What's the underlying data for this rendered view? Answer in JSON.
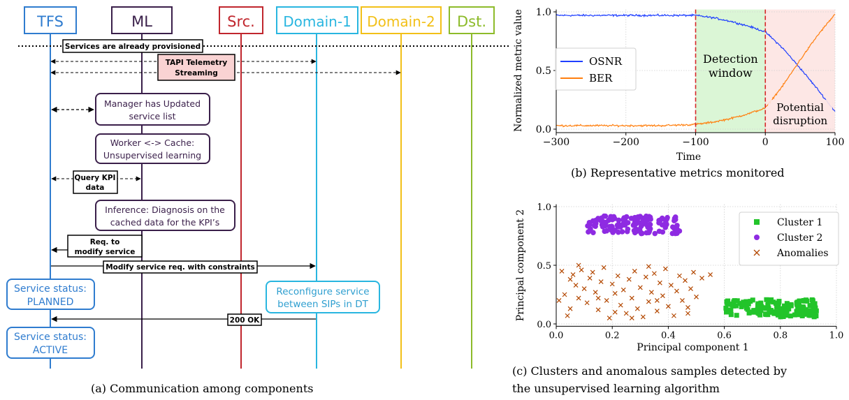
{
  "panel_a": {
    "caption": "(a) Communication among components",
    "lifelines": [
      {
        "label": "TFS",
        "color": "#2f7ccf"
      },
      {
        "label": "ML",
        "color": "#3a1f4a"
      },
      {
        "label": "Src.",
        "color": "#c0262d"
      },
      {
        "label": "Domain-1",
        "color": "#29b6e0"
      },
      {
        "label": "Domain-2",
        "color": "#f2c018"
      },
      {
        "label": "Dst.",
        "color": "#8dbb2a"
      }
    ],
    "messages": {
      "provisioned": "Services are already provisioned",
      "telemetry_line1": "TAPI Telemetry",
      "telemetry_line2": "Streaming",
      "query_line1": "Query KPI",
      "query_line2": "data",
      "req_line1": "Req. to",
      "req_line2": "modify service",
      "modify": "Modify service req. with constraints",
      "ok": "200 OK"
    },
    "notes": {
      "manager_line1": "Manager has Updated",
      "manager_line2": "service list",
      "worker_line1": "Worker <-> Cache:",
      "worker_line2": "Unsupervised learning",
      "inference_line1": "Inference: Diagnosis on the",
      "inference_line2": "cached data for the KPI’s",
      "planned_line1": "Service status:",
      "planned_line2": "PLANNED",
      "reconfig_line1": "Reconfigure service",
      "reconfig_line2": "between SIPs in DT",
      "active_line1": "Service status:",
      "active_line2": "ACTIVE"
    }
  },
  "chart_data": [
    {
      "type": "line",
      "caption": "(b) Representative metrics monitored",
      "xlabel": "Time",
      "ylabel": "Normalized metric value",
      "xlim": [
        -300,
        100
      ],
      "ylim": [
        0,
        1
      ],
      "xticks": [
        -300,
        -200,
        -100,
        0,
        100
      ],
      "yticks": [
        0.0,
        0.5,
        1.0
      ],
      "xtick_labels": [
        "−300",
        "−200",
        "−100",
        "0",
        "100"
      ],
      "ytick_labels": [
        "0.0",
        "0.5",
        "1.0"
      ],
      "grid": true,
      "legend_position": "center-left",
      "series": [
        {
          "name": "OSNR",
          "color": "#1f3fff",
          "x": [
            -300,
            -250,
            -200,
            -150,
            -100,
            -75,
            -50,
            -25,
            0,
            25,
            50,
            75,
            100
          ],
          "values": [
            0.97,
            0.97,
            0.97,
            0.97,
            0.97,
            0.95,
            0.92,
            0.88,
            0.83,
            0.69,
            0.52,
            0.34,
            0.15
          ]
        },
        {
          "name": "BER",
          "color": "#ff7f0e",
          "x": [
            -300,
            -250,
            -200,
            -150,
            -100,
            -75,
            -50,
            -25,
            0,
            25,
            50,
            75,
            100
          ],
          "values": [
            0.03,
            0.03,
            0.03,
            0.03,
            0.04,
            0.06,
            0.09,
            0.13,
            0.18,
            0.37,
            0.59,
            0.8,
            0.98
          ]
        }
      ],
      "regions": [
        {
          "label_line1": "Detection",
          "label_line2": "window",
          "x_range": [
            -100,
            0
          ],
          "color": "#dbf6d6"
        },
        {
          "label_line1": "Potential",
          "label_line2": "disruption",
          "x_range": [
            0,
            100
          ],
          "color": "#fde7e5"
        }
      ],
      "vlines": [
        {
          "x": -100,
          "color": "#d62728"
        },
        {
          "x": 0,
          "color": "#d62728"
        }
      ]
    },
    {
      "type": "scatter",
      "caption_line1": "(c) Clusters and anomalous samples detected by",
      "caption_line2": "the unsupervised learning algorithm",
      "xlabel": "Principal component 1",
      "ylabel": "Principal component 2",
      "xlim": [
        0,
        1
      ],
      "ylim": [
        0,
        1
      ],
      "xticks": [
        0.0,
        0.2,
        0.4,
        0.6,
        0.8,
        1.0
      ],
      "yticks": [
        0.0,
        0.5,
        1.0
      ],
      "xtick_labels": [
        "0.0",
        "0.2",
        "0.4",
        "0.6",
        "0.8",
        "1.0"
      ],
      "ytick_labels": [
        "0.0",
        "0.5",
        "1.0"
      ],
      "grid": true,
      "legend_position": "top-right",
      "series": [
        {
          "name": "Cluster 1",
          "marker": "square",
          "color": "#22c42a",
          "count": 150,
          "x_range": [
            0.6,
            0.93
          ],
          "y_range": [
            0.06,
            0.21
          ]
        },
        {
          "name": "Cluster 2",
          "marker": "circle",
          "color": "#8e2be2",
          "count": 130,
          "x_range": [
            0.11,
            0.44
          ],
          "y_range": [
            0.77,
            0.92
          ]
        },
        {
          "name": "Anomalies",
          "marker": "x",
          "color": "#b34700",
          "points": [
            [
              0.02,
              0.45
            ],
            [
              0.03,
              0.25
            ],
            [
              0.05,
              0.38
            ],
            [
              0.05,
              0.13
            ],
            [
              0.06,
              0.42
            ],
            [
              0.07,
              0.33
            ],
            [
              0.08,
              0.22
            ],
            [
              0.09,
              0.46
            ],
            [
              0.1,
              0.3
            ],
            [
              0.11,
              0.18
            ],
            [
              0.12,
              0.39
            ],
            [
              0.13,
              0.44
            ],
            [
              0.14,
              0.27
            ],
            [
              0.15,
              0.12
            ],
            [
              0.16,
              0.36
            ],
            [
              0.17,
              0.48
            ],
            [
              0.18,
              0.2
            ],
            [
              0.19,
              0.05
            ],
            [
              0.2,
              0.34
            ],
            [
              0.21,
              0.26
            ],
            [
              0.22,
              0.41
            ],
            [
              0.23,
              0.16
            ],
            [
              0.24,
              0.29
            ],
            [
              0.25,
              0.09
            ],
            [
              0.26,
              0.38
            ],
            [
              0.27,
              0.22
            ],
            [
              0.28,
              0.45
            ],
            [
              0.29,
              0.13
            ],
            [
              0.3,
              0.31
            ],
            [
              0.31,
              0.06
            ],
            [
              0.32,
              0.4
            ],
            [
              0.33,
              0.19
            ],
            [
              0.34,
              0.27
            ],
            [
              0.35,
              0.43
            ],
            [
              0.36,
              0.11
            ],
            [
              0.37,
              0.35
            ],
            [
              0.38,
              0.24
            ],
            [
              0.39,
              0.47
            ],
            [
              0.4,
              0.15
            ],
            [
              0.41,
              0.33
            ],
            [
              0.42,
              0.07
            ],
            [
              0.43,
              0.28
            ],
            [
              0.44,
              0.41
            ],
            [
              0.45,
              0.2
            ],
            [
              0.46,
              0.37
            ],
            [
              0.47,
              0.14
            ],
            [
              0.48,
              0.3
            ],
            [
              0.49,
              0.44
            ],
            [
              0.5,
              0.23
            ],
            [
              0.52,
              0.39
            ],
            [
              0.55,
              0.42
            ],
            [
              0.04,
              0.07
            ],
            [
              0.01,
              0.2
            ],
            [
              0.08,
              0.5
            ],
            [
              0.33,
              0.49
            ],
            [
              0.27,
              0.05
            ],
            [
              0.15,
              0.22
            ],
            [
              0.36,
              0.2
            ],
            [
              0.21,
              0.1
            ],
            [
              0.47,
              0.09
            ]
          ]
        }
      ]
    }
  ]
}
